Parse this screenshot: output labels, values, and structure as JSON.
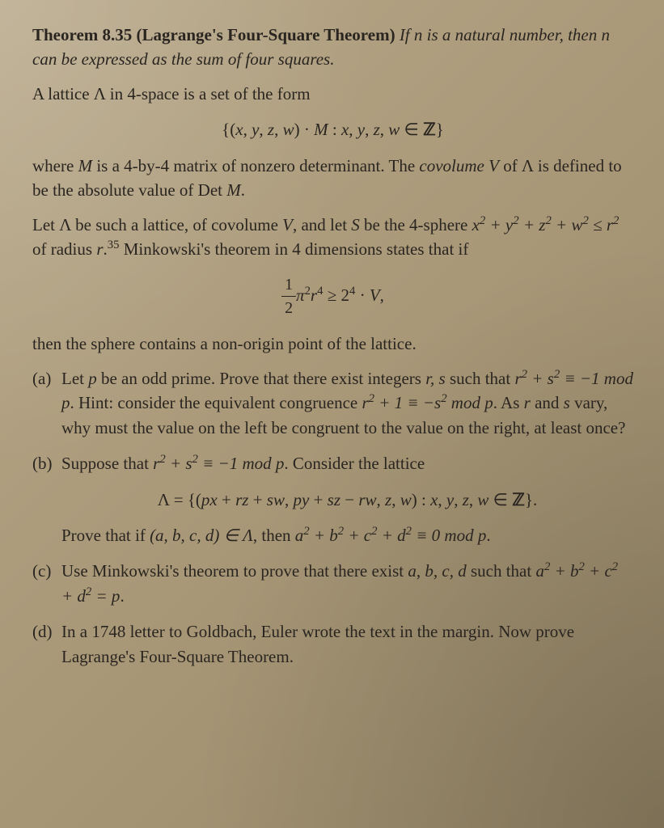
{
  "theorem": {
    "number": "Theorem 8.35",
    "name": "(Lagrange's Four-Square Theorem)",
    "statement_part1": "If n is a natural number, then n can be expressed as the sum of four squares."
  },
  "para1": "A lattice Λ in 4-space is a set of the form",
  "math1": "{(x, y, z, w) · M : x, y, z, w ∈ ℤ}",
  "para2_part1": "where ",
  "para2_M": "M",
  "para2_part2": " is a 4-by-4 matrix of nonzero determinant. The ",
  "para2_covolume": "covolume",
  "para2_part3": " V of Λ is defined to be the absolute value of Det ",
  "para2_M2": "M",
  "para2_end": ".",
  "para3_part1": "Let Λ be such a lattice, of covolume ",
  "para3_V": "V",
  "para3_part2": ", and let ",
  "para3_S": "S",
  "para3_part3": " be the 4-sphere ",
  "para3_ineq": "x² + y² + z² + w² ≤ r²",
  "para3_part4": " of radius ",
  "para3_r": "r",
  "para3_part5": ".",
  "para3_footnote": "35",
  "para3_part6": " Minkowski's theorem in 4 dimensions states that if",
  "math2_frac_num": "1",
  "math2_frac_den": "2",
  "math2_rest": "π²r⁴ ≥ 2⁴ · V,",
  "para4": "then the sphere contains a non-origin point of the lattice.",
  "item_a": {
    "label": "(a)",
    "text_part1": "Let ",
    "text_p": "p",
    "text_part2": " be an odd prime. Prove that there exist integers ",
    "text_rs": "r, s",
    "text_part3": " such that ",
    "text_cong1": "r² + s² ≡ −1 mod p",
    "text_part4": ". Hint: consider the equivalent congruence ",
    "text_cong2": "r² + 1 ≡ −s² mod p",
    "text_part5": ". As ",
    "text_r": "r",
    "text_part6": " and ",
    "text_s": "s",
    "text_part7": " vary, why must the value on the left be congruent to the value on the right, at least once?"
  },
  "item_b": {
    "label": "(b)",
    "text_part1": "Suppose that ",
    "text_cong": "r² + s² ≡ −1 mod p",
    "text_part2": ". Consider the lattice",
    "math": "Λ = {(px + rz + sw, py + sz − rw, z, w) : x, y, z, w ∈ ℤ}.",
    "text_part3": "Prove that if ",
    "text_tuple": "(a, b, c, d) ∈ Λ",
    "text_part4": ", then ",
    "text_sum": "a² + b² + c² + d² ≡ 0 mod p",
    "text_end": "."
  },
  "item_c": {
    "label": "(c)",
    "text_part1": "Use Minkowski's theorem to prove that there exist ",
    "text_abcd": "a, b, c, d",
    "text_part2": " such that ",
    "text_eq": "a² + b² + c² + d² = p",
    "text_end": "."
  },
  "item_d": {
    "label": "(d)",
    "text": "In a 1748 letter to Goldbach, Euler wrote the text in the margin. Now prove Lagrange's Four-Square Theorem."
  }
}
